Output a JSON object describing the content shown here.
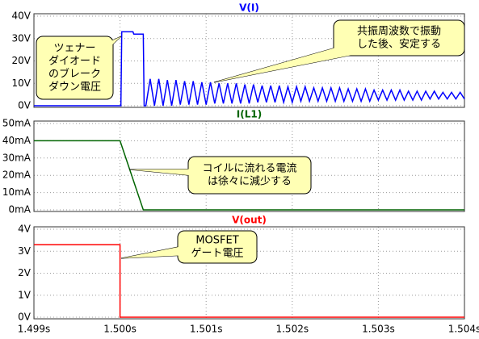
{
  "chart_data": [
    {
      "type": "line",
      "title": "V(I)",
      "color": "#0000ff",
      "xlim": [
        1.499,
        1.504
      ],
      "xticks": [
        1.499,
        1.5,
        1.501,
        1.502,
        1.503,
        1.504
      ],
      "ylim": [
        0,
        40
      ],
      "yticks": [
        {
          "value": 0,
          "label": "0V"
        },
        {
          "value": 10,
          "label": "10V"
        },
        {
          "value": 20,
          "label": "20V"
        },
        {
          "value": 30,
          "label": "30V"
        },
        {
          "value": 40,
          "label": "40V"
        }
      ],
      "grid": true,
      "x": [
        1.499,
        1.50001,
        1.50002,
        1.50015,
        1.50016,
        1.50027,
        1.50028,
        1.5003,
        1.50035,
        1.5004,
        1.50045,
        1.5005,
        1.50055,
        1.5006,
        1.50065,
        1.5007,
        1.50075,
        1.5008,
        1.50085,
        1.5009,
        1.50095,
        1.501,
        1.50105,
        1.5011,
        1.50115,
        1.5012,
        1.50125,
        1.5013,
        1.50135,
        1.5014,
        1.50145,
        1.5015,
        1.50155,
        1.5016,
        1.50165,
        1.5017,
        1.50175,
        1.5018,
        1.50185,
        1.5019,
        1.50195,
        1.502,
        1.50205,
        1.5021,
        1.50215,
        1.5022,
        1.50225,
        1.5023,
        1.50235,
        1.5024,
        1.50245,
        1.5025,
        1.50255,
        1.5026,
        1.50265,
        1.5027,
        1.50275,
        1.5028,
        1.50285,
        1.5029,
        1.50295,
        1.503,
        1.50305,
        1.5031,
        1.50315,
        1.5032,
        1.50325,
        1.5033,
        1.50335,
        1.5034,
        1.50345,
        1.5035,
        1.50355,
        1.5036,
        1.50365,
        1.5037,
        1.50375,
        1.5038,
        1.50385,
        1.5039,
        1.50395,
        1.504
      ],
      "values": [
        0,
        0,
        33,
        33,
        32,
        32,
        0,
        0,
        12,
        0,
        12,
        0,
        11.5,
        0,
        11.5,
        0.5,
        11,
        0.5,
        11,
        0.5,
        10.5,
        0.5,
        10.5,
        1,
        10,
        1,
        10,
        1,
        10,
        1,
        9.5,
        1,
        9.5,
        1.5,
        9,
        1.5,
        9,
        1.5,
        9,
        1.5,
        8.5,
        1.5,
        8.5,
        2,
        8.5,
        2,
        8,
        2,
        8,
        2,
        8,
        2,
        8,
        2,
        7.5,
        2,
        7.5,
        2,
        7.5,
        2,
        7,
        2.5,
        7,
        2.5,
        7,
        2.5,
        7,
        2.5,
        6.5,
        2.5,
        6.5,
        2.5,
        6.5,
        3,
        6.5,
        3,
        6,
        3,
        6,
        3,
        6,
        3
      ],
      "annotations": [
        {
          "lines": [
            "ツェナー",
            "ダイオード",
            "のブレーク",
            "ダウン電圧"
          ]
        },
        {
          "lines": [
            "共振周波数で振動",
            "した後、安定する"
          ]
        }
      ]
    },
    {
      "type": "line",
      "title": "I(L1)",
      "color": "#006400",
      "xlim": [
        1.499,
        1.504
      ],
      "xticks": [
        1.499,
        1.5,
        1.501,
        1.502,
        1.503,
        1.504
      ],
      "ylim": [
        0,
        50
      ],
      "yticks": [
        {
          "value": 0,
          "label": "0mA"
        },
        {
          "value": 10,
          "label": "10mA"
        },
        {
          "value": 20,
          "label": "20mA"
        },
        {
          "value": 30,
          "label": "30mA"
        },
        {
          "value": 40,
          "label": "40mA"
        },
        {
          "value": 50,
          "label": "50mA"
        }
      ],
      "grid": true,
      "x": [
        1.499,
        1.5,
        1.50027,
        1.504
      ],
      "values": [
        40,
        40,
        0,
        0
      ],
      "annotations": [
        {
          "lines": [
            "コイルに流れる電流",
            "は徐々に減少する"
          ]
        }
      ]
    },
    {
      "type": "line",
      "title": "V(out)",
      "color": "#ff0000",
      "xlim": [
        1.499,
        1.504
      ],
      "xticks": [
        {
          "value": 1.499,
          "label": "1.499s"
        },
        {
          "value": 1.5,
          "label": "1.500s"
        },
        {
          "value": 1.501,
          "label": "1.501s"
        },
        {
          "value": 1.502,
          "label": "1.502s"
        },
        {
          "value": 1.503,
          "label": "1.503s"
        },
        {
          "value": 1.504,
          "label": "1.504s"
        }
      ],
      "ylim": [
        0,
        4
      ],
      "yticks": [
        {
          "value": 0,
          "label": "0V"
        },
        {
          "value": 1,
          "label": "1V"
        },
        {
          "value": 2,
          "label": "2V"
        },
        {
          "value": 3,
          "label": "3V"
        },
        {
          "value": 4,
          "label": "4V"
        }
      ],
      "grid": true,
      "x": [
        1.499,
        1.5,
        1.5,
        1.504
      ],
      "values": [
        3.3,
        3.3,
        0,
        0
      ],
      "annotations": [
        {
          "lines": [
            "MOSFET",
            "ゲート電圧"
          ]
        }
      ]
    }
  ]
}
